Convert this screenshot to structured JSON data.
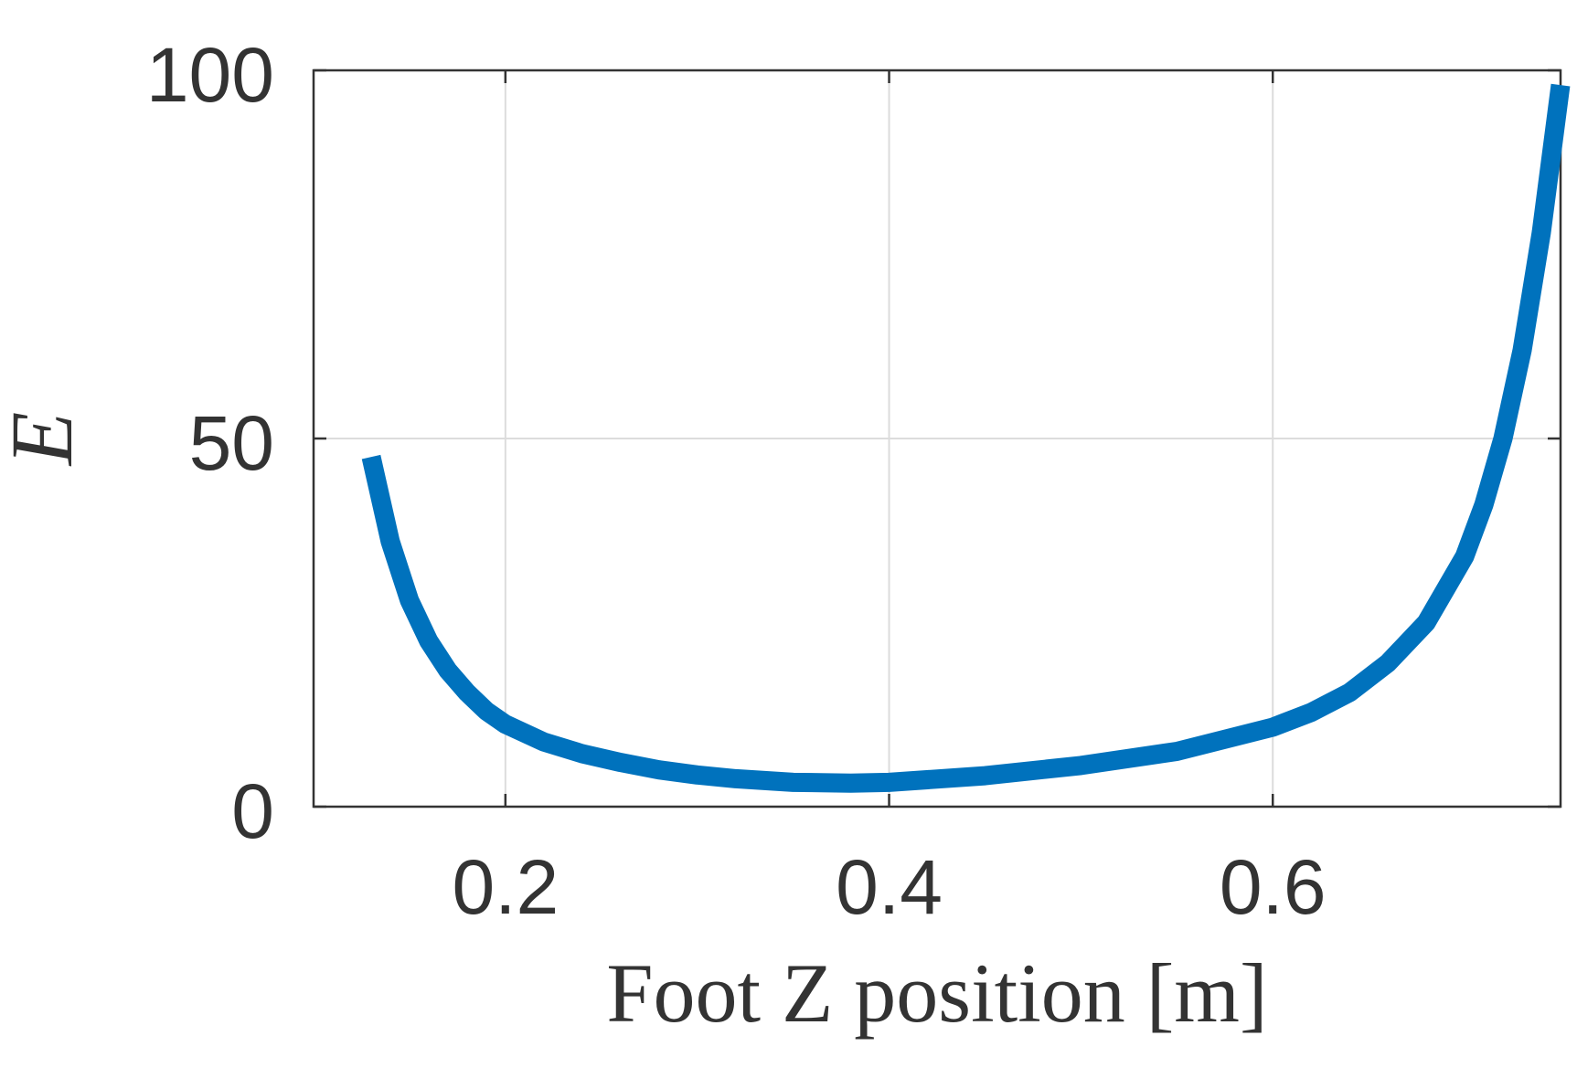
{
  "chart_data": {
    "type": "line",
    "title": "",
    "xlabel": "Foot Z position [m]",
    "ylabel": "E",
    "xlim": [
      0.1,
      0.75
    ],
    "ylim": [
      0,
      100
    ],
    "grid": true,
    "x_ticks": [
      "0.2",
      "0.4",
      "0.6"
    ],
    "y_ticks": [
      "0",
      "50",
      "100"
    ],
    "x_tick_values": [
      0.2,
      0.4,
      0.6
    ],
    "y_tick_values": [
      0,
      50,
      100
    ],
    "line_color": "#0072BD",
    "series": [
      {
        "x": [
          0.13,
          0.14,
          0.15,
          0.16,
          0.17,
          0.18,
          0.19,
          0.2,
          0.22,
          0.24,
          0.26,
          0.28,
          0.3,
          0.32,
          0.35,
          0.38,
          0.4,
          0.45,
          0.5,
          0.55,
          0.6,
          0.62,
          0.64,
          0.66,
          0.68,
          0.7,
          0.71,
          0.72,
          0.73,
          0.74,
          0.75
        ],
        "y": [
          47.5,
          36,
          28,
          22.5,
          18.5,
          15.5,
          13,
          11.2,
          8.8,
          7.2,
          6.0,
          5.0,
          4.3,
          3.8,
          3.3,
          3.2,
          3.3,
          4.2,
          5.6,
          7.5,
          10.8,
          12.8,
          15.5,
          19.5,
          25,
          34,
          41,
          50,
          62,
          78,
          98
        ]
      }
    ]
  }
}
